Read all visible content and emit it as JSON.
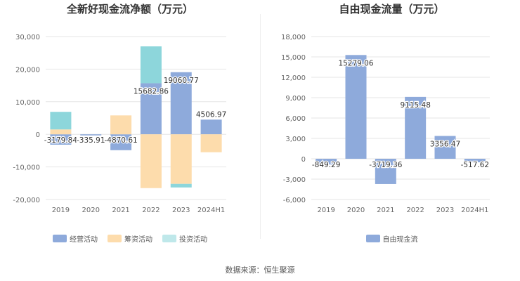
{
  "footer": "数据来源：恒生聚源",
  "colors": {
    "operating": "#8eaadb",
    "financing": "#fddcac",
    "investing": "#8dd6db",
    "fcf": "#8eaadb"
  },
  "chart_data": [
    {
      "type": "bar",
      "stacked": true,
      "title": "全新好现金流净额（万元）",
      "categories": [
        "2019",
        "2020",
        "2021",
        "2022",
        "2023",
        "2024H1"
      ],
      "ylim": [
        -20000,
        30000
      ],
      "yticks": [
        30000,
        20000,
        10000,
        0,
        -10000,
        -20000
      ],
      "ytick_labels": [
        "30,000",
        "20,000",
        "10,000",
        "0",
        "-10,000",
        "-20,000"
      ],
      "grid": true,
      "legend_position": "bottom",
      "series": [
        {
          "name": "经营活动",
          "values": [
            -3179.84,
            -335.91,
            -4870.61,
            15682.86,
            19060.77,
            4506.97
          ]
        },
        {
          "name": "筹资活动",
          "values": [
            1500,
            0,
            5800,
            -16500,
            -15200,
            -5500
          ]
        },
        {
          "name": "投资活动",
          "values": [
            5400,
            0,
            0,
            11300,
            -1100,
            0
          ]
        }
      ],
      "data_labels": [
        "-3179.84",
        "-335.91",
        "-4870.61",
        "15682.86",
        "19060.77",
        "4506.97"
      ]
    },
    {
      "type": "bar",
      "title": "自由现金流量（万元）",
      "categories": [
        "2019",
        "2020",
        "2021",
        "2022",
        "2023",
        "2024H1"
      ],
      "ylim": [
        -6000,
        18000
      ],
      "yticks": [
        18000,
        15000,
        12000,
        9000,
        6000,
        3000,
        0,
        -3000,
        -6000
      ],
      "ytick_labels": [
        "18,000",
        "15,000",
        "12,000",
        "9,000",
        "6,000",
        "3,000",
        "0",
        "-3,000",
        "-6,000"
      ],
      "grid": true,
      "legend_position": "bottom",
      "series": [
        {
          "name": "自由现金流",
          "values": [
            -849.29,
            15279.06,
            -3719.36,
            9115.48,
            3356.47,
            -517.62
          ]
        }
      ],
      "data_labels": [
        "-849.29",
        "15279.06",
        "-3719.36",
        "9115.48",
        "3356.47",
        "-517.62"
      ]
    }
  ]
}
